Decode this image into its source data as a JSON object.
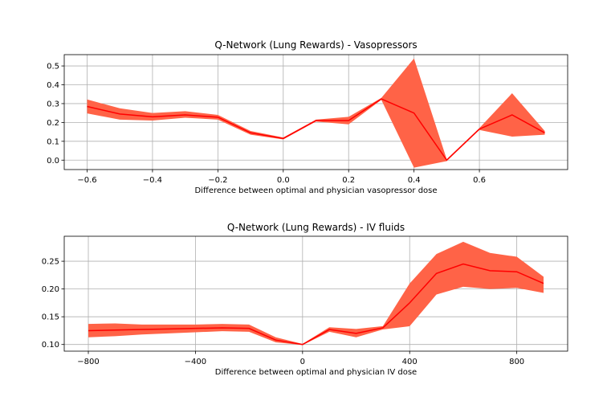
{
  "chart_data": [
    {
      "type": "line",
      "title": "Q-Network (Lung Rewards) - Vasopressors",
      "xlabel": "Difference between optimal and physician vasopressor dose",
      "ylabel": "",
      "xlim": [
        -0.67,
        0.87
      ],
      "ylim": [
        -0.05,
        0.56
      ],
      "xticks": [
        -0.6,
        -0.4,
        -0.2,
        0.0,
        0.2,
        0.4,
        0.6
      ],
      "xtick_labels": [
        "−0.6",
        "−0.4",
        "−0.2",
        "0.0",
        "0.2",
        "0.4",
        "0.6"
      ],
      "yticks": [
        0.0,
        0.1,
        0.2,
        0.3,
        0.4,
        0.5
      ],
      "ytick_labels": [
        "0.0",
        "0.1",
        "0.2",
        "0.3",
        "0.4",
        "0.5"
      ],
      "grid": true,
      "series": [
        {
          "color": "#ff0000",
          "band_color": "#ff6347",
          "x": [
            -0.6,
            -0.5,
            -0.4,
            -0.3,
            -0.2,
            -0.1,
            0.0,
            0.1,
            0.2,
            0.3,
            0.4,
            0.5,
            0.6,
            0.7,
            0.8
          ],
          "y": [
            0.285,
            0.245,
            0.23,
            0.24,
            0.228,
            0.145,
            0.115,
            0.21,
            0.21,
            0.325,
            0.25,
            0.0,
            0.165,
            0.24,
            0.145
          ],
          "lower": [
            0.248,
            0.215,
            0.21,
            0.225,
            0.215,
            0.135,
            0.11,
            0.205,
            0.19,
            0.32,
            -0.04,
            -0.005,
            0.16,
            0.125,
            0.135
          ],
          "upper": [
            0.322,
            0.275,
            0.25,
            0.26,
            0.24,
            0.155,
            0.12,
            0.215,
            0.23,
            0.33,
            0.54,
            0.005,
            0.17,
            0.355,
            0.155
          ]
        }
      ]
    },
    {
      "type": "line",
      "title": "Q-Network (Lung Rewards) - IV fluids",
      "xlabel": "Difference between optimal and physician IV dose",
      "ylabel": "",
      "xlim": [
        -890,
        990
      ],
      "ylim": [
        0.088,
        0.295
      ],
      "xticks": [
        -800,
        -400,
        0,
        400,
        800
      ],
      "xtick_labels": [
        "−800",
        "−400",
        "0",
        "400",
        "800"
      ],
      "yticks": [
        0.1,
        0.15,
        0.2,
        0.25
      ],
      "ytick_labels": [
        "0.10",
        "0.15",
        "0.20",
        "0.25"
      ],
      "grid": true,
      "series": [
        {
          "color": "#ff0000",
          "band_color": "#ff6347",
          "x": [
            -800,
            -700,
            -600,
            -500,
            -400,
            -300,
            -200,
            -100,
            0,
            100,
            200,
            300,
            400,
            500,
            600,
            700,
            800,
            900
          ],
          "y": [
            0.125,
            0.126,
            0.127,
            0.128,
            0.129,
            0.13,
            0.129,
            0.108,
            0.1,
            0.127,
            0.12,
            0.13,
            0.175,
            0.228,
            0.245,
            0.233,
            0.231,
            0.21
          ],
          "lower": [
            0.113,
            0.115,
            0.118,
            0.12,
            0.122,
            0.124,
            0.123,
            0.104,
            0.099,
            0.123,
            0.113,
            0.127,
            0.133,
            0.19,
            0.204,
            0.2,
            0.202,
            0.193
          ],
          "upper": [
            0.137,
            0.138,
            0.136,
            0.136,
            0.136,
            0.137,
            0.136,
            0.113,
            0.101,
            0.131,
            0.128,
            0.133,
            0.21,
            0.263,
            0.285,
            0.265,
            0.258,
            0.222
          ]
        }
      ]
    }
  ]
}
